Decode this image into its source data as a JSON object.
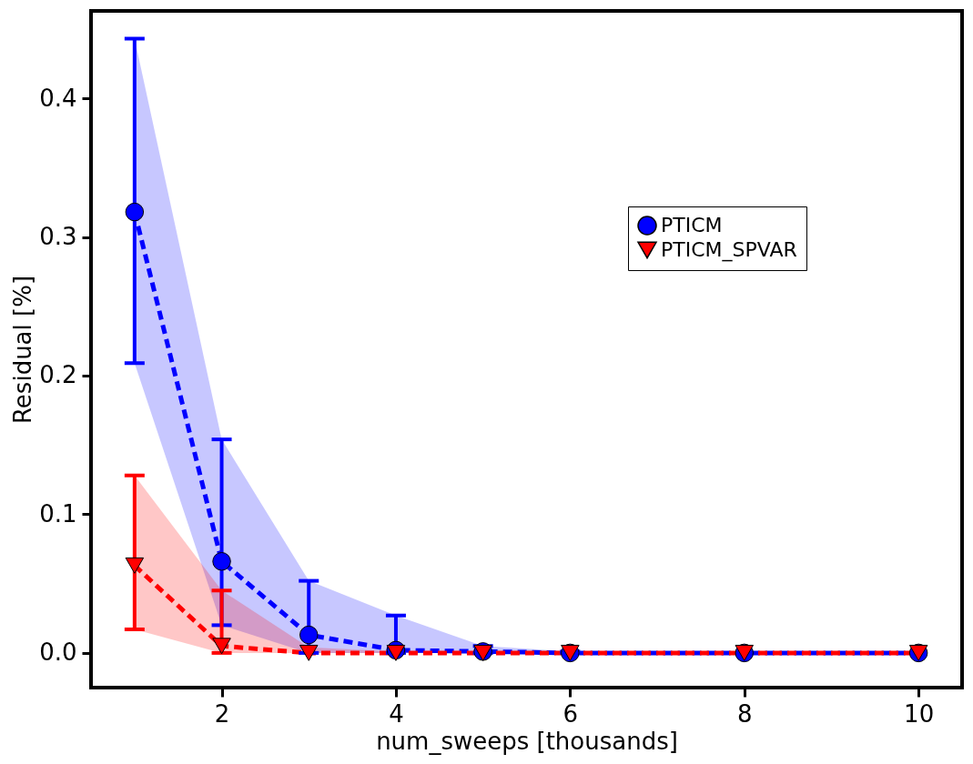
{
  "chart_data": {
    "type": "line",
    "xlabel": "num_sweeps [thousands]",
    "ylabel": "Residual [%]",
    "x": [
      1,
      2,
      3,
      4,
      5,
      6,
      8,
      10
    ],
    "series": [
      {
        "name": "PTICM",
        "color": "#0000ff",
        "marker": "circle",
        "values": [
          0.318,
          0.066,
          0.013,
          0.002,
          0.001,
          0,
          0,
          0
        ],
        "errors": [
          [
            0.209,
            0.443
          ],
          [
            0.02,
            0.154
          ],
          [
            0,
            0.052
          ],
          [
            0,
            0.027
          ],
          [
            0,
            0.005
          ],
          [
            0,
            0.001
          ],
          null,
          null
        ],
        "lower": [
          0.209,
          0.02,
          0,
          0,
          0,
          0,
          0,
          0
        ],
        "upper": [
          0.443,
          0.154,
          0.052,
          0.027,
          0.005,
          0.001,
          0,
          0
        ]
      },
      {
        "name": "PTICM_SPVAR",
        "color": "#ff0000",
        "marker": "triangle",
        "values": [
          0.063,
          0.005,
          0,
          0,
          0,
          0,
          0,
          0
        ],
        "errors": [
          [
            0.017,
            0.128
          ],
          [
            0,
            0.045
          ],
          null,
          null,
          null,
          null,
          null,
          null
        ],
        "lower": [
          0.017,
          0,
          0,
          0,
          0,
          0,
          0,
          0
        ],
        "upper": [
          0.128,
          0.045,
          0.004,
          0.001,
          0,
          0,
          0,
          0
        ]
      }
    ],
    "xlim": [
      0.5,
      10.5
    ],
    "ylim": [
      -0.025,
      0.463
    ],
    "xticks": [
      2,
      4,
      6,
      8,
      10
    ],
    "yticks": [
      {
        "value": 0,
        "label": "0.0"
      },
      0.1,
      0.2,
      0.3,
      0.4
    ],
    "line_style": "dashed",
    "grid": false,
    "legend": "right"
  }
}
